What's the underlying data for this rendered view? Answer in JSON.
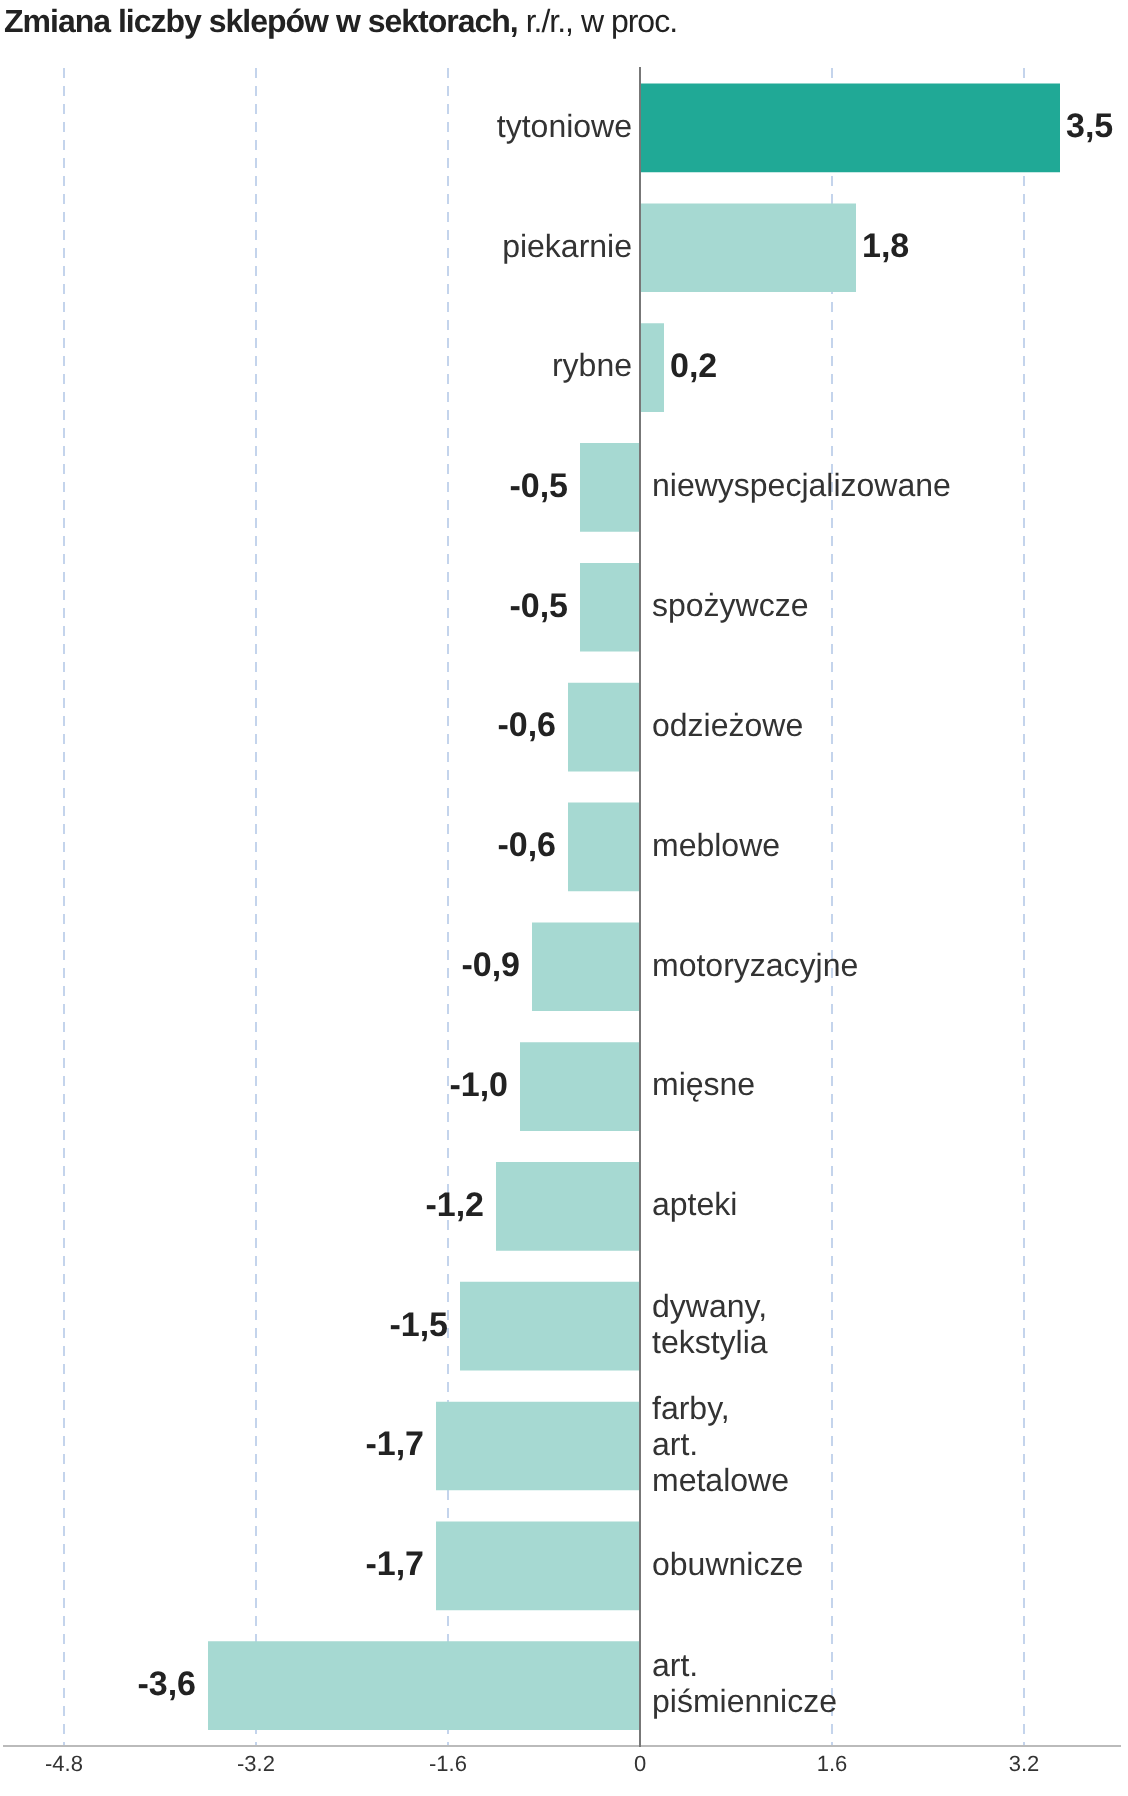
{
  "chart_data": {
    "type": "bar",
    "orientation": "horizontal",
    "title": "Zmiana liczby sklepów w  sektorach,",
    "subtitle": "r./r., w proc.",
    "categories": [
      "tytoniowe",
      "piekarnie",
      "rybne",
      "niewyspecjalizowane",
      "spożywcze",
      "odzieżowe",
      "meblowe",
      "motoryzacyjne",
      "mięsne",
      "apteki",
      "dywany, tekstylia",
      "farby, art. metalowe",
      "obuwnicze",
      "art. piśmiennicze"
    ],
    "values": [
      3.5,
      1.8,
      0.2,
      -0.5,
      -0.5,
      -0.6,
      -0.6,
      -0.9,
      -1.0,
      -1.2,
      -1.5,
      -1.7,
      -1.7,
      -3.6
    ],
    "value_labels": [
      "3,5",
      "1,8",
      "0,2",
      "-0,5",
      "-0,5",
      "-0,6",
      "-0,6",
      "-0,9",
      "-1,0",
      "-1,2",
      "-1,5",
      "-1,7",
      "-1,7",
      "-3,6"
    ],
    "colors": [
      "#20a996",
      "#a6d9d2",
      "#a6d9d2",
      "#a6d9d2",
      "#a6d9d2",
      "#a6d9d2",
      "#a6d9d2",
      "#a6d9d2",
      "#a6d9d2",
      "#a6d9d2",
      "#a6d9d2",
      "#a6d9d2",
      "#a6d9d2",
      "#a6d9d2"
    ],
    "xlim": [
      -5.3,
      4.0
    ],
    "xticks": [
      -4.8,
      -3.2,
      -1.6,
      0,
      1.6,
      3.2
    ],
    "grid": "x",
    "legend": false
  }
}
